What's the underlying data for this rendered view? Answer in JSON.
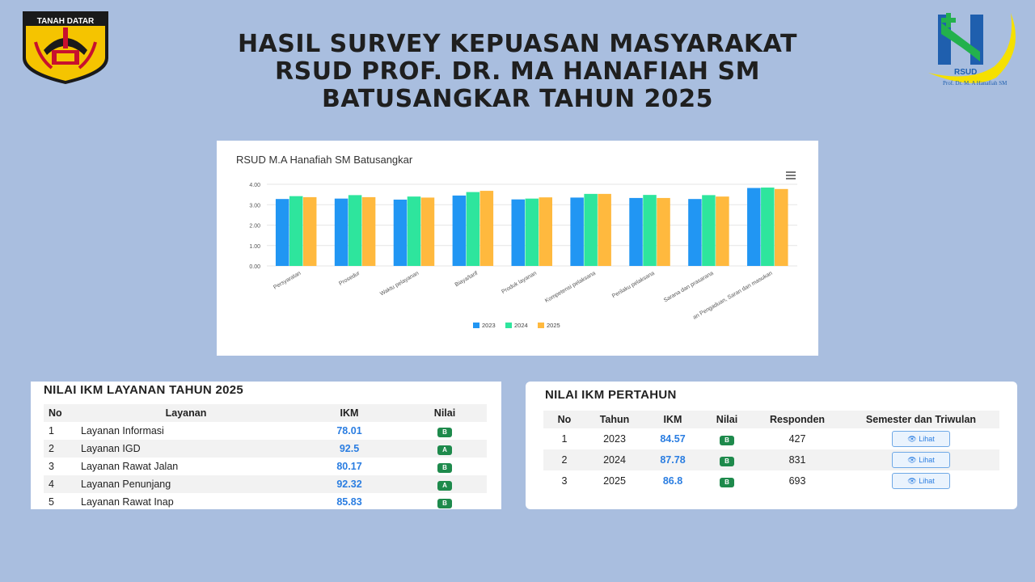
{
  "header": {
    "title_line1": "HASIL SURVEY KEPUASAN MASYARAKAT",
    "title_line2": "RSUD PROF. DR. MA HANAFIAH SM",
    "title_line3": "BATUSANGKAR  TAHUN 2025",
    "left_logo_text": "TANAH DATAR",
    "right_logo_text": "RSUD",
    "right_logo_subtext": "Prof. Dr. M. A Hanafiah SM"
  },
  "colors": {
    "background": "#a9bedf",
    "series_2023": "#2196f3",
    "series_2024": "#2ee59d",
    "series_2025": "#ffb93e",
    "badge": "#1e8a4c",
    "ikm_text": "#2a7de1"
  },
  "chart_data": {
    "type": "bar",
    "title": "RSUD M.A Hanafiah SM Batusangkar",
    "categories": [
      "Persyaratan",
      "Prosedur",
      "Waktu pelayanan",
      "Biaya/tarif",
      "Produk layanan",
      "Kompetensi pelaksana",
      "Perilaku pelaksana",
      "Sarana dan prasarana",
      "an Pengaduan, Saran dan masukan"
    ],
    "series": [
      {
        "name": "2023",
        "color": "#2196f3",
        "values": [
          3.28,
          3.3,
          3.25,
          3.45,
          3.26,
          3.35,
          3.33,
          3.28,
          3.82
        ]
      },
      {
        "name": "2024",
        "color": "#2ee59d",
        "values": [
          3.42,
          3.47,
          3.4,
          3.62,
          3.3,
          3.53,
          3.48,
          3.47,
          3.84
        ]
      },
      {
        "name": "2025",
        "color": "#ffb93e",
        "values": [
          3.37,
          3.37,
          3.35,
          3.68,
          3.36,
          3.53,
          3.33,
          3.4,
          3.77
        ]
      }
    ],
    "yticks": [
      "0.00",
      "1.00",
      "2.00",
      "3.00",
      "4.00"
    ],
    "ylim": [
      0,
      4
    ],
    "grid": true,
    "legend": "bottom"
  },
  "ikm_layanan": {
    "title": "NILAI IKM LAYANAN TAHUN 2025",
    "headers": [
      "No",
      "Layanan",
      "IKM",
      "Nilai"
    ],
    "rows": [
      {
        "no": "1",
        "layanan": "Layanan Informasi",
        "ikm": "78.01",
        "nilai": "B"
      },
      {
        "no": "2",
        "layanan": "Layanan IGD",
        "ikm": "92.5",
        "nilai": "A"
      },
      {
        "no": "3",
        "layanan": "Layanan Rawat Jalan",
        "ikm": "80.17",
        "nilai": "B"
      },
      {
        "no": "4",
        "layanan": "Layanan Penunjang",
        "ikm": "92.32",
        "nilai": "A"
      },
      {
        "no": "5",
        "layanan": "Layanan Rawat Inap",
        "ikm": "85.83",
        "nilai": "B"
      }
    ]
  },
  "ikm_pertahun": {
    "title": "NILAI IKM PERTAHUN",
    "headers": [
      "No",
      "Tahun",
      "IKM",
      "Nilai",
      "Responden",
      "Semester dan Triwulan"
    ],
    "button_label": "Lihat",
    "rows": [
      {
        "no": "1",
        "tahun": "2023",
        "ikm": "84.57",
        "nilai": "B",
        "responden": "427"
      },
      {
        "no": "2",
        "tahun": "2024",
        "ikm": "87.78",
        "nilai": "B",
        "responden": "831"
      },
      {
        "no": "3",
        "tahun": "2025",
        "ikm": "86.8",
        "nilai": "B",
        "responden": "693"
      }
    ]
  }
}
